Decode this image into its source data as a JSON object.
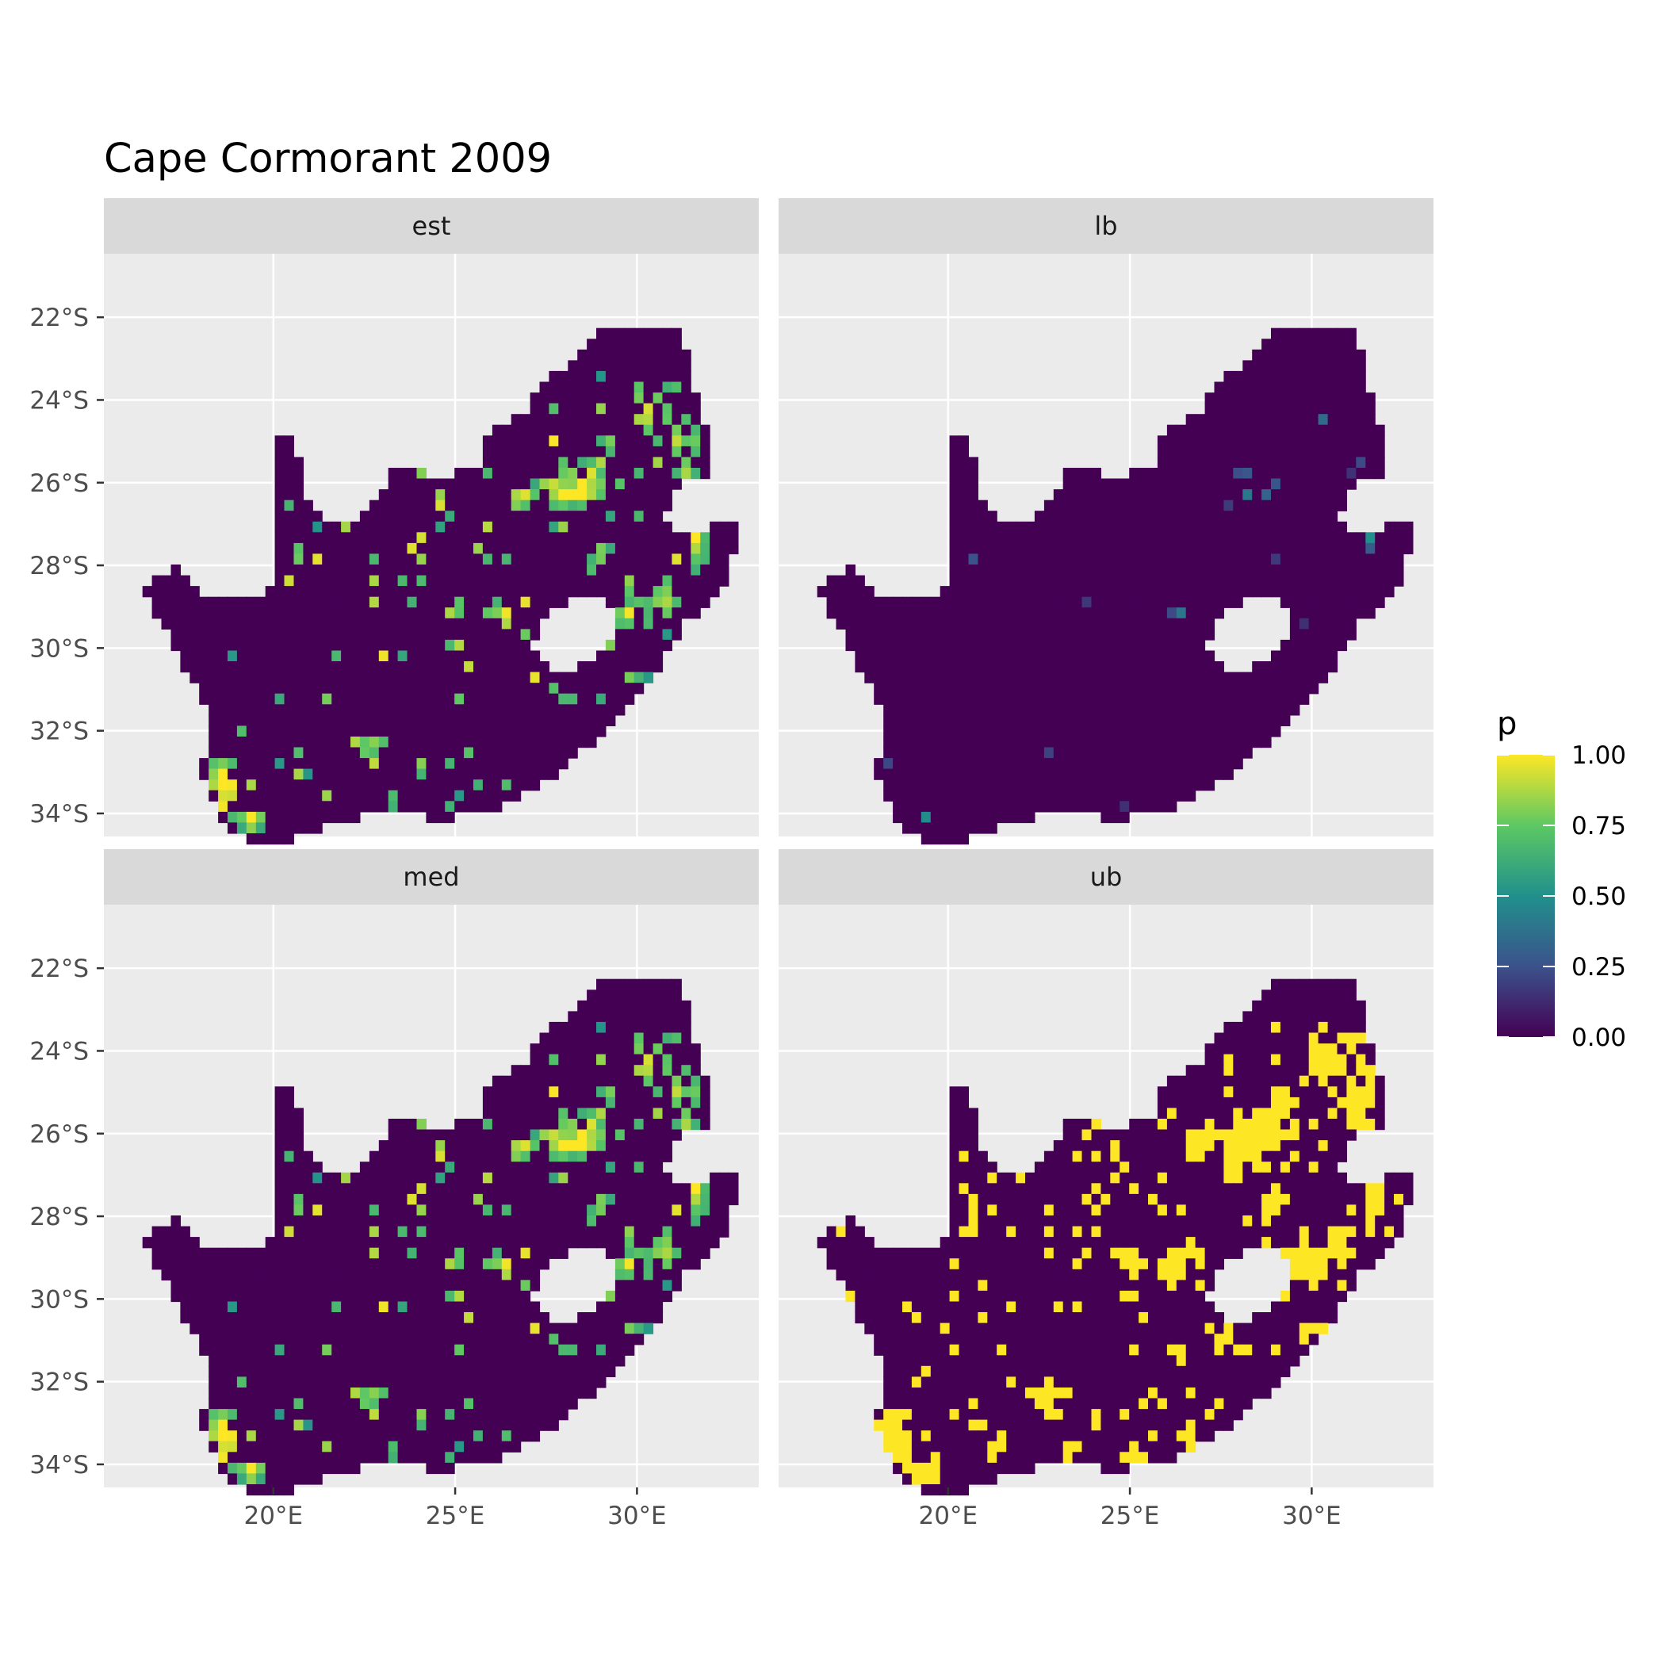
{
  "title": "Cape Cormorant 2009",
  "colors": {
    "panel_bg": "#EBEBEB",
    "strip_bg": "#D9D9D9",
    "grid": "#FFFFFF",
    "viridis": [
      "#440154",
      "#3B528B",
      "#21908C",
      "#5DC863",
      "#FDE725"
    ]
  },
  "panels": [
    {
      "label": "est"
    },
    {
      "label": "lb"
    },
    {
      "label": "med"
    },
    {
      "label": "ub"
    }
  ],
  "axes": {
    "x_ticks": [
      "20°E",
      "25°E",
      "30°E"
    ],
    "y_ticks": [
      "22°S",
      "24°S",
      "26°S",
      "28°S",
      "30°S",
      "32°S",
      "34°S"
    ]
  },
  "legend": {
    "title": "p",
    "labels": [
      "1.00",
      "0.75",
      "0.50",
      "0.25",
      "0.00"
    ]
  },
  "chart_data": {
    "type": "heatmap",
    "title": "Cape Cormorant 2009",
    "facets": [
      "est",
      "lb",
      "med",
      "ub"
    ],
    "x_ticks_lon_e": [
      20,
      25,
      30
    ],
    "y_ticks_lat_s": [
      22,
      24,
      26,
      28,
      30,
      32,
      34
    ],
    "xlim_lon": [
      15.6,
      33.7
    ],
    "ylim_lat_s": [
      35.5,
      20.9
    ],
    "fill_variable": "p",
    "fill_range": [
      0,
      1
    ],
    "color_scale": "viridis",
    "grid": true,
    "legend_position": "right"
  }
}
